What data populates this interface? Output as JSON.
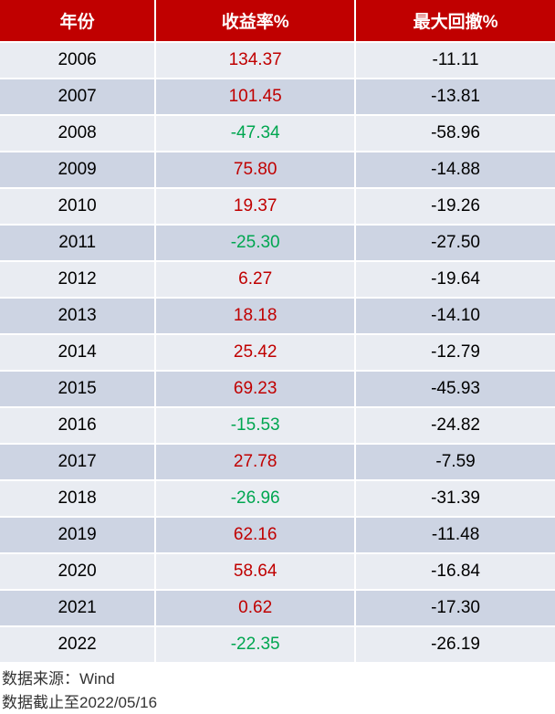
{
  "table": {
    "columns": [
      "年份",
      "收益率%",
      "最大回撤%"
    ],
    "header_bg": "#c00000",
    "header_text_color": "#ffffff",
    "row_bg_odd": "#e9ecf2",
    "row_bg_even": "#cdd4e3",
    "positive_color": "#c00000",
    "negative_color": "#00a650",
    "label_fontsize": 19,
    "rows": [
      {
        "year": "2006",
        "return": "134.37",
        "return_sign": "pos",
        "drawdown": "-11.11"
      },
      {
        "year": "2007",
        "return": "101.45",
        "return_sign": "pos",
        "drawdown": "-13.81"
      },
      {
        "year": "2008",
        "return": "-47.34",
        "return_sign": "neg",
        "drawdown": "-58.96"
      },
      {
        "year": "2009",
        "return": "75.80",
        "return_sign": "pos",
        "drawdown": "-14.88"
      },
      {
        "year": "2010",
        "return": "19.37",
        "return_sign": "pos",
        "drawdown": "-19.26"
      },
      {
        "year": "2011",
        "return": "-25.30",
        "return_sign": "neg",
        "drawdown": "-27.50"
      },
      {
        "year": "2012",
        "return": "6.27",
        "return_sign": "pos",
        "drawdown": "-19.64"
      },
      {
        "year": "2013",
        "return": "18.18",
        "return_sign": "pos",
        "drawdown": "-14.10"
      },
      {
        "year": "2014",
        "return": "25.42",
        "return_sign": "pos",
        "drawdown": "-12.79"
      },
      {
        "year": "2015",
        "return": "69.23",
        "return_sign": "pos",
        "drawdown": "-45.93"
      },
      {
        "year": "2016",
        "return": "-15.53",
        "return_sign": "neg",
        "drawdown": "-24.82"
      },
      {
        "year": "2017",
        "return": "27.78",
        "return_sign": "pos",
        "drawdown": "-7.59"
      },
      {
        "year": "2018",
        "return": "-26.96",
        "return_sign": "neg",
        "drawdown": "-31.39"
      },
      {
        "year": "2019",
        "return": "62.16",
        "return_sign": "pos",
        "drawdown": "-11.48"
      },
      {
        "year": "2020",
        "return": "58.64",
        "return_sign": "pos",
        "drawdown": "-16.84"
      },
      {
        "year": "2021",
        "return": "0.62",
        "return_sign": "pos",
        "drawdown": "-17.30"
      },
      {
        "year": "2022",
        "return": "-22.35",
        "return_sign": "neg",
        "drawdown": "-26.19"
      }
    ]
  },
  "footer": {
    "source": "数据来源：Wind",
    "cutoff": "数据截止至2022/05/16"
  }
}
